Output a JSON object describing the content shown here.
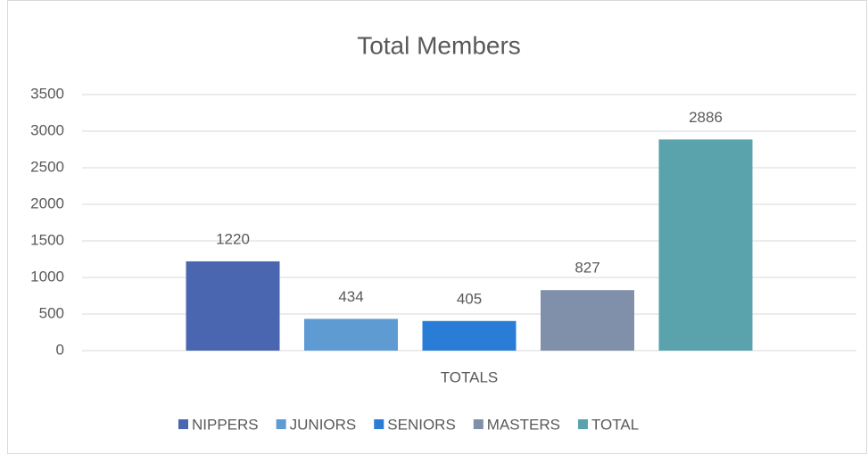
{
  "chart_data": {
    "type": "bar",
    "title": "Total Members",
    "categories": [
      "TOTALS"
    ],
    "series": [
      {
        "name": "NIPPERS",
        "color": "#4a66b0",
        "values": [
          1220
        ]
      },
      {
        "name": "JUNIORS",
        "color": "#5f9bd3",
        "values": [
          434
        ]
      },
      {
        "name": "SENIORS",
        "color": "#2a7dd6",
        "values": [
          405
        ]
      },
      {
        "name": "MASTERS",
        "color": "#8090aa",
        "values": [
          827
        ]
      },
      {
        "name": "TOTAL",
        "color": "#5aa3ad",
        "values": [
          2886
        ]
      }
    ],
    "ylim": [
      0,
      3500
    ],
    "yticks": [
      0,
      500,
      1000,
      1500,
      2000,
      2500,
      3000,
      3500
    ],
    "grid": true,
    "legend": "bottom"
  }
}
